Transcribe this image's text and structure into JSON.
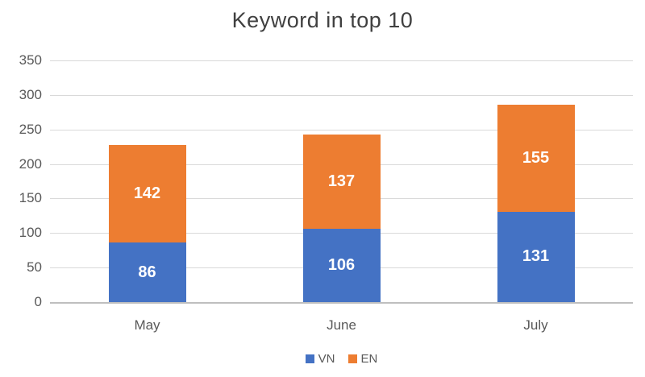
{
  "chart_data": {
    "type": "bar",
    "stacked": true,
    "title": "Keyword in top 10",
    "categories": [
      "May",
      "June",
      "July"
    ],
    "series": [
      {
        "name": "VN",
        "color": "#4472c4",
        "values": [
          86,
          106,
          131
        ]
      },
      {
        "name": "EN",
        "color": "#ed7d31",
        "values": [
          142,
          137,
          155
        ]
      }
    ],
    "totals": [
      228,
      243,
      286
    ],
    "xlabel": "",
    "ylabel": "",
    "ylim": [
      0,
      350
    ],
    "yticks": [
      0,
      50,
      100,
      150,
      200,
      250,
      300,
      350
    ],
    "grid": true,
    "legend_position": "bottom",
    "colors": {
      "title_text": "#404040",
      "axis_text": "#595959",
      "data_label_text": "#ffffff",
      "gridline": "#d9d9d9",
      "axis_line": "#bfbfbf",
      "background": "#ffffff"
    }
  }
}
